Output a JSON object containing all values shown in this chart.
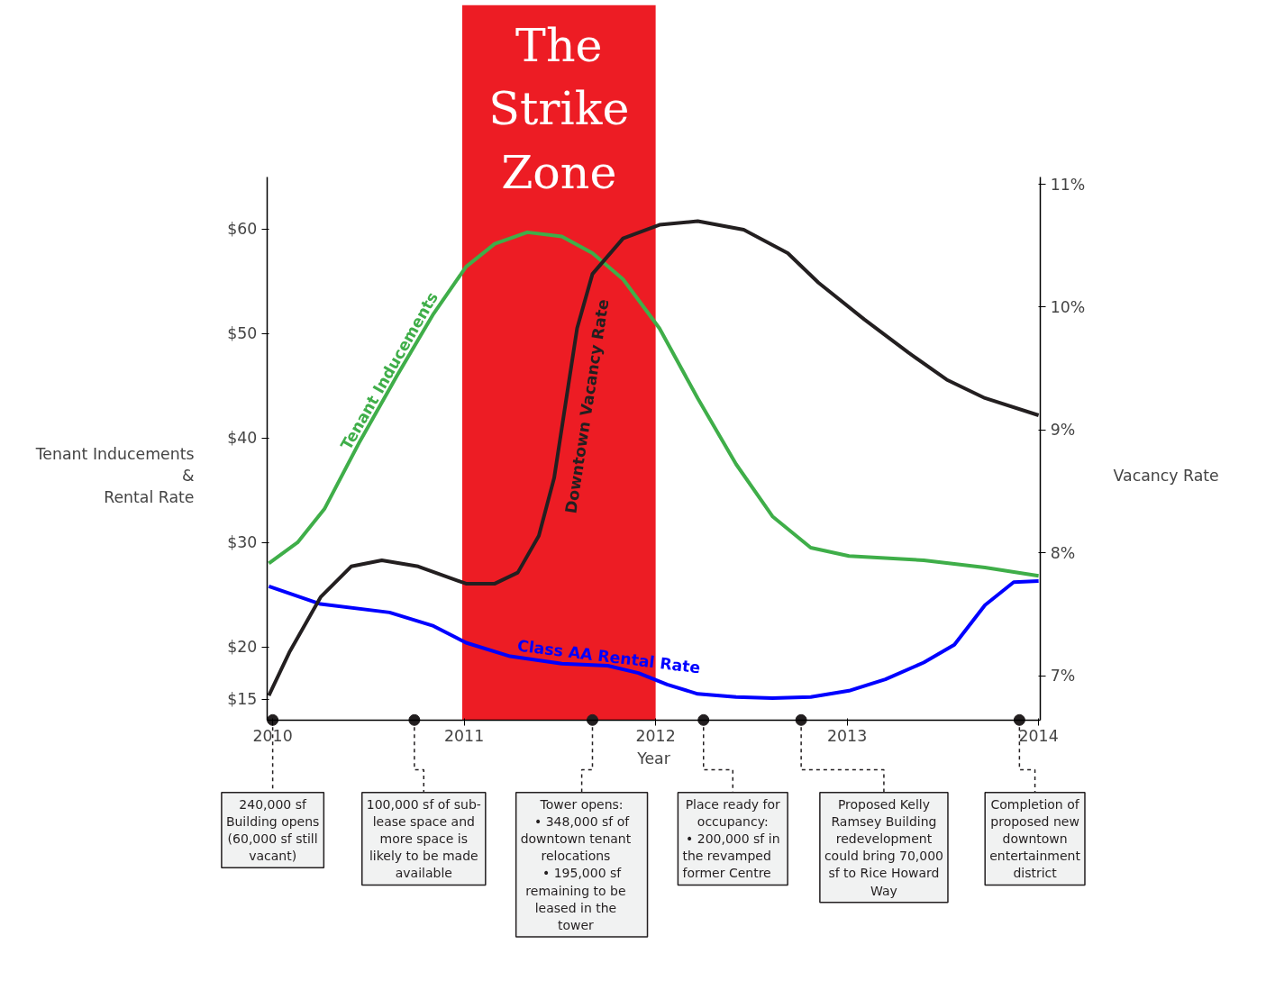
{
  "chart_data": {
    "type": "line",
    "ylabel": "Tenant Inducements\n&\nRental Rate",
    "y2label": "Vacancy Rate",
    "xlabel": "Year",
    "xlim": [
      2009.97,
      2014.01
    ],
    "xticks": [
      2010,
      2011,
      2012,
      2013,
      2014
    ],
    "ylim": [
      13,
      65
    ],
    "yticks": [
      {
        "value": 15,
        "label": "$15"
      },
      {
        "value": 20,
        "label": "$20"
      },
      {
        "value": 30,
        "label": "$30"
      },
      {
        "value": 40,
        "label": "$40"
      },
      {
        "value": 50,
        "label": "$50"
      },
      {
        "value": 60,
        "label": "$60"
      }
    ],
    "y2lim": [
      6.64,
      11.06
    ],
    "y2ticks": [
      {
        "value": 7,
        "label": "7%"
      },
      {
        "value": 8,
        "label": "8%"
      },
      {
        "value": 9,
        "label": "9%"
      },
      {
        "value": 10,
        "label": "10%"
      },
      {
        "value": 11,
        "label": "11%"
      }
    ],
    "grid": false,
    "line_style": "solid",
    "marker": "none",
    "series": [
      {
        "name": "Tenant Inducements",
        "color": "#3fae49",
        "x": [
          2009.98,
          2010.13,
          2010.27,
          2010.45,
          2010.65,
          2010.84,
          2011.01,
          2011.16,
          2011.33,
          2011.51,
          2011.67,
          2011.83,
          2012.02,
          2012.22,
          2012.42,
          2012.61,
          2012.81,
          2013.01,
          2013.4,
          2013.72,
          2014.0
        ],
        "values": [
          28,
          30,
          33.2,
          39.5,
          46,
          51.9,
          56.4,
          58.6,
          59.7,
          59.3,
          57.7,
          55.2,
          50.5,
          43.8,
          37.5,
          32.5,
          29.5,
          28.7,
          28.3,
          27.6,
          26.8
        ]
      },
      {
        "name": "Class AA Rental Rate",
        "color": "#0000ff",
        "x": [
          2009.98,
          2010.25,
          2010.61,
          2010.84,
          2011.01,
          2011.24,
          2011.51,
          2011.75,
          2011.91,
          2012.06,
          2012.22,
          2012.42,
          2012.61,
          2012.81,
          2013.01,
          2013.2,
          2013.4,
          2013.56,
          2013.72,
          2013.87,
          2014.0
        ],
        "values": [
          25.8,
          24.1,
          23.3,
          22.0,
          20.4,
          19.1,
          18.4,
          18.2,
          17.5,
          16.4,
          15.5,
          15.2,
          15.1,
          15.2,
          15.8,
          16.9,
          18.5,
          20.2,
          24.0,
          26.2,
          26.3
        ]
      },
      {
        "name": "Downtown Vacancy Rate",
        "color": "#231f20",
        "axis": "y2",
        "x": [
          2009.98,
          2010.09,
          2010.25,
          2010.41,
          2010.57,
          2010.76,
          2011.01,
          2011.16,
          2011.28,
          2011.39,
          2011.47,
          2011.53,
          2011.59,
          2011.67,
          2011.83,
          2012.02,
          2012.22,
          2012.46,
          2012.69,
          2012.85,
          2013.09,
          2013.32,
          2013.52,
          2013.72,
          2014.0
        ],
        "values": [
          6.84,
          7.2,
          7.64,
          7.89,
          7.94,
          7.89,
          7.75,
          7.75,
          7.84,
          8.14,
          8.61,
          9.22,
          9.83,
          10.27,
          10.56,
          10.67,
          10.7,
          10.63,
          10.44,
          10.2,
          9.9,
          9.63,
          9.41,
          9.26,
          9.12
        ]
      }
    ],
    "bands": [
      {
        "axis": "x",
        "from": 2010.99,
        "to": 2012.0,
        "label": "The Strike Zone",
        "color": "#ed1c24"
      }
    ],
    "annotations": [
      {
        "text": "240,000 sf Building opens (60,000 sf still vacant)",
        "x": 2010.0,
        "y": 13
      },
      {
        "text": "100,000 sf of sub-lease space and more space is likely to be made available",
        "x": 2010.74,
        "y": 13
      },
      {
        "text": "Tower opens: • 348,000 sf of downtown tenant relocations • 195,000 sf remaining to be leased in the tower",
        "x": 2011.67,
        "y": 13
      },
      {
        "text": "Place ready for occupancy: • 200,000 sf in the revamped former Centre",
        "x": 2012.25,
        "y": 13
      },
      {
        "text": "Proposed Kelly Ramsey Building redevelopment could bring 70,000 sf to Rice Howard Way",
        "x": 2012.76,
        "y": 13
      },
      {
        "text": "Completion of proposed new downtown entertainment district",
        "x": 2013.9,
        "y": 13
      }
    ]
  }
}
